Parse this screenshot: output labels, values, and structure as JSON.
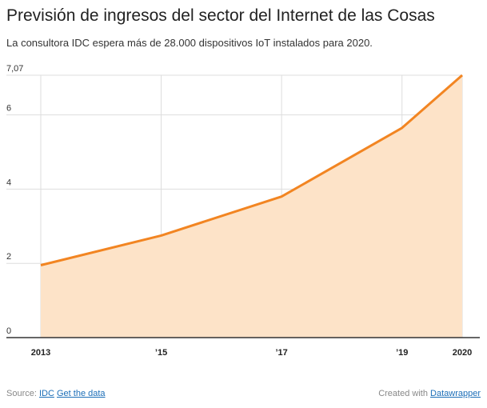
{
  "header": {
    "title": "Previsión de ingresos del sector del Internet de las Cosas",
    "subtitle": "La consultora IDC espera más de 28.000 dispositivos IoT instalados para 2020."
  },
  "footer": {
    "source_label": "Source:",
    "source_link": "IDC",
    "data_link": "Get the data",
    "credit_label": "Created with",
    "credit_link": "Datawrapper"
  },
  "colors": {
    "line": "#f28522",
    "area": "#fde3c8",
    "grid": "#dddddd",
    "axis": "#333333",
    "link": "#1d6fb8"
  },
  "chart_data": {
    "type": "area",
    "x": [
      2013,
      2015,
      2017,
      2019,
      2020
    ],
    "values": [
      1.95,
      2.75,
      3.8,
      5.65,
      7.07
    ],
    "ylim": [
      0,
      7.07
    ],
    "yticks": [
      0,
      2,
      4,
      6,
      7.07
    ],
    "ytick_labels": [
      "0",
      "2",
      "4",
      "6",
      "7,07"
    ],
    "xticks": [
      2013,
      2015,
      2017,
      2019,
      2020
    ],
    "xtick_labels": [
      "2013",
      "’15",
      "’17",
      "’19",
      "2020"
    ],
    "grid": true
  }
}
